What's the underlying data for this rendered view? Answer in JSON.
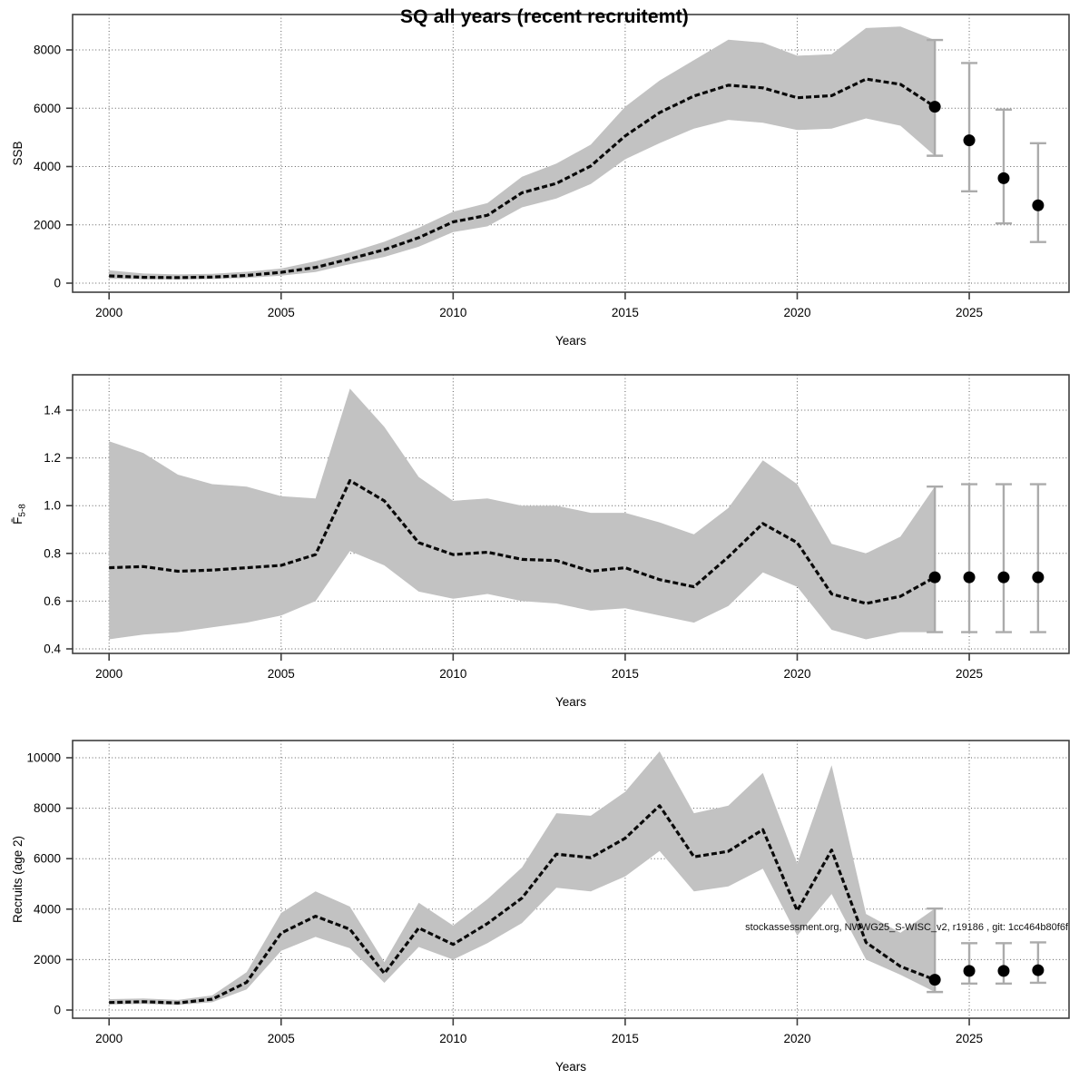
{
  "title": "SQ all years (recent recruitemt)",
  "annotation": "stockassessment.org, NWWG25_S-WISC_v2, r19186 , git: 1cc464b80f6f",
  "colors": {
    "band": "#c2c2c2",
    "line": "#0a0a0a",
    "point": "#000000",
    "errorbar": "#ababab",
    "grid": "#5f5f5f",
    "frame": "#3f3f3f",
    "tick_text": "#000000"
  },
  "x_axis": {
    "label": "Years",
    "tick_labels": [
      "2000",
      "2005",
      "2010",
      "2015",
      "2020",
      "2025"
    ],
    "tick_years": [
      2000,
      2005,
      2010,
      2015,
      2020,
      2025
    ],
    "range": [
      1998.94,
      2027.9
    ]
  },
  "chart_data": [
    {
      "type": "line",
      "name": "ssb",
      "ylabel": "SSB",
      "ylabel_sub": "",
      "ytick_labels": [
        "0",
        "2000",
        "4000",
        "6000",
        "8000"
      ],
      "ytick_values": [
        0,
        2000,
        4000,
        6000,
        8000
      ],
      "ylim": [
        -311,
        9214
      ],
      "grid": true,
      "legend": "none",
      "x": [
        2000,
        2001,
        2002,
        2003,
        2004,
        2005,
        2006,
        2007,
        2008,
        2009,
        2010,
        2011,
        2012,
        2013,
        2014,
        2015,
        2016,
        2017,
        2018,
        2019,
        2020,
        2021,
        2022,
        2023,
        2024
      ],
      "values": [
        250,
        200,
        190,
        210,
        265,
        370,
        540,
        830,
        1150,
        1560,
        2100,
        2330,
        3100,
        3420,
        4020,
        5050,
        5850,
        6420,
        6790,
        6700,
        6360,
        6430,
        7000,
        6820,
        6050
      ],
      "band_lower": [
        150,
        130,
        125,
        140,
        180,
        260,
        380,
        650,
        900,
        1250,
        1750,
        1950,
        2600,
        2900,
        3400,
        4250,
        4800,
        5300,
        5600,
        5500,
        5250,
        5300,
        5650,
        5400,
        4370
      ],
      "band_upper": [
        440,
        330,
        300,
        320,
        390,
        500,
        750,
        1050,
        1420,
        1900,
        2450,
        2750,
        3650,
        4100,
        4750,
        6050,
        6950,
        7650,
        8350,
        8250,
        7800,
        7850,
        8750,
        8800,
        8340
      ],
      "assessment_point": {
        "year": 2024,
        "value": 6050,
        "lower": 4370,
        "upper": 8340
      },
      "forecast_points": [
        {
          "year": 2025,
          "value": 4900,
          "lower": 3150,
          "upper": 7550
        },
        {
          "year": 2026,
          "value": 3600,
          "lower": 2050,
          "upper": 5950
        },
        {
          "year": 2027,
          "value": 2670,
          "lower": 1410,
          "upper": 4800
        }
      ]
    },
    {
      "type": "line",
      "name": "fbar",
      "ylabel": "F̄",
      "ylabel_sub": "5-8",
      "ytick_labels": [
        "0.4",
        "0.6",
        "0.8",
        "1.0",
        "1.2",
        "1.4"
      ],
      "ytick_values": [
        0.4,
        0.6,
        0.8,
        1.0,
        1.2,
        1.4
      ],
      "ylim": [
        0.381,
        1.5483
      ],
      "grid": true,
      "legend": "none",
      "x": [
        2000,
        2001,
        2002,
        2003,
        2004,
        2005,
        2006,
        2007,
        2008,
        2009,
        2010,
        2011,
        2012,
        2013,
        2014,
        2015,
        2016,
        2017,
        2018,
        2019,
        2020,
        2021,
        2022,
        2023,
        2024
      ],
      "values": [
        0.74,
        0.745,
        0.725,
        0.73,
        0.74,
        0.75,
        0.795,
        1.105,
        1.02,
        0.845,
        0.795,
        0.805,
        0.775,
        0.77,
        0.725,
        0.74,
        0.69,
        0.66,
        0.785,
        0.925,
        0.845,
        0.63,
        0.59,
        0.62,
        0.7
      ],
      "band_lower": [
        0.44,
        0.46,
        0.47,
        0.49,
        0.51,
        0.54,
        0.6,
        0.81,
        0.75,
        0.64,
        0.61,
        0.63,
        0.6,
        0.59,
        0.56,
        0.57,
        0.54,
        0.51,
        0.58,
        0.72,
        0.66,
        0.48,
        0.44,
        0.47,
        0.47
      ],
      "band_upper": [
        1.27,
        1.22,
        1.13,
        1.09,
        1.08,
        1.04,
        1.03,
        1.49,
        1.33,
        1.12,
        1.02,
        1.03,
        1.0,
        1.0,
        0.97,
        0.97,
        0.93,
        0.88,
        0.99,
        1.19,
        1.09,
        0.84,
        0.8,
        0.87,
        1.08
      ],
      "assessment_point": {
        "year": 2024,
        "value": 0.7,
        "lower": 0.47,
        "upper": 1.08
      },
      "forecast_points": [
        {
          "year": 2025,
          "value": 0.7,
          "lower": 0.47,
          "upper": 1.09
        },
        {
          "year": 2026,
          "value": 0.7,
          "lower": 0.47,
          "upper": 1.09
        },
        {
          "year": 2027,
          "value": 0.7,
          "lower": 0.47,
          "upper": 1.09
        }
      ]
    },
    {
      "type": "line",
      "name": "recruits",
      "ylabel": "Recruits (age 2)",
      "ylabel_sub": "",
      "ytick_labels": [
        "0",
        "2000",
        "4000",
        "6000",
        "8000",
        "10000"
      ],
      "ytick_values": [
        0,
        2000,
        4000,
        6000,
        8000,
        10000
      ],
      "ylim": [
        -324,
        10683
      ],
      "grid": true,
      "legend": "none",
      "x": [
        2000,
        2001,
        2002,
        2003,
        2004,
        2005,
        2006,
        2007,
        2008,
        2009,
        2010,
        2011,
        2012,
        2013,
        2014,
        2015,
        2016,
        2017,
        2018,
        2019,
        2020,
        2021,
        2022,
        2023,
        2024
      ],
      "values": [
        300,
        330,
        280,
        430,
        1100,
        3050,
        3720,
        3200,
        1450,
        3250,
        2600,
        3430,
        4440,
        6180,
        6040,
        6810,
        8100,
        6070,
        6290,
        7150,
        3940,
        6340,
        2680,
        1730,
        1200
      ],
      "band_lower": [
        220,
        240,
        200,
        310,
        820,
        2350,
        2900,
        2450,
        1080,
        2500,
        2000,
        2650,
        3450,
        4850,
        4700,
        5300,
        6300,
        4700,
        4900,
        5600,
        2950,
        4600,
        2000,
        1400,
        715
      ],
      "band_upper": [
        430,
        460,
        400,
        580,
        1500,
        3850,
        4700,
        4100,
        1900,
        4250,
        3350,
        4400,
        5650,
        7800,
        7700,
        8650,
        10250,
        7800,
        8100,
        9400,
        5800,
        9700,
        3810,
        3060,
        4020
      ],
      "assessment_point": {
        "year": 2024,
        "value": 1200,
        "lower": 715,
        "upper": 4020
      },
      "forecast_points": [
        {
          "year": 2025,
          "value": 1550,
          "lower": 1050,
          "upper": 2650
        },
        {
          "year": 2026,
          "value": 1550,
          "lower": 1050,
          "upper": 2650
        },
        {
          "year": 2027,
          "value": 1580,
          "lower": 1080,
          "upper": 2680
        }
      ]
    }
  ]
}
